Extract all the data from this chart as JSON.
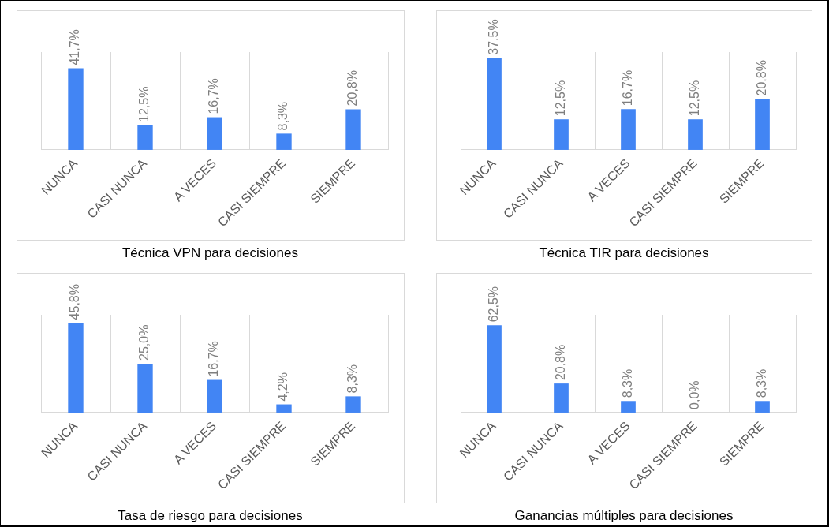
{
  "chart_data": [
    {
      "type": "bar",
      "title": "Técnica VPN para decisiones",
      "categories": [
        "NUNCA",
        "CASI NUNCA",
        "A VECES",
        "CASI SIEMPRE",
        "SIEMPRE"
      ],
      "values": [
        41.7,
        12.5,
        16.7,
        8.3,
        20.8
      ],
      "value_labels": [
        "41,7%",
        "12,5%",
        "16,7%",
        "8,3%",
        "20,8%"
      ],
      "color": "#4285f4",
      "grid": "x",
      "tick_labels": "x"
    },
    {
      "type": "bar",
      "title": "Técnica TIR para decisiones",
      "categories": [
        "NUNCA",
        "CASI NUNCA",
        "A VECES",
        "CASI SIEMPRE",
        "SIEMPRE"
      ],
      "values": [
        37.5,
        12.5,
        16.7,
        12.5,
        20.8
      ],
      "value_labels": [
        "37,5%",
        "12,5%",
        "16,7%",
        "12,5%",
        "20,8%"
      ],
      "color": "#4285f4",
      "grid": "x",
      "tick_labels": "x"
    },
    {
      "type": "bar",
      "title": "Tasa de riesgo para decisiones",
      "categories": [
        "NUNCA",
        "CASI NUNCA",
        "A VECES",
        "CASI SIEMPRE",
        "SIEMPRE"
      ],
      "values": [
        45.8,
        25.0,
        16.7,
        4.2,
        8.3
      ],
      "value_labels": [
        "45,8%",
        "25,0%",
        "16,7%",
        "4,2%",
        "8,3%"
      ],
      "color": "#4285f4",
      "grid": "x",
      "tick_labels": "x"
    },
    {
      "type": "bar",
      "title": "Ganancias múltiples para decisiones",
      "categories": [
        "NUNCA",
        "CASI NUNCA",
        "A VECES",
        "CASI SIEMPRE",
        "SIEMPRE"
      ],
      "values": [
        62.5,
        20.8,
        8.3,
        0.0,
        8.3
      ],
      "value_labels": [
        "62,5%",
        "20,8%",
        "8,3%",
        "0,0%",
        "8,3%"
      ],
      "color": "#4285f4",
      "grid": "x",
      "tick_labels": "x"
    }
  ]
}
